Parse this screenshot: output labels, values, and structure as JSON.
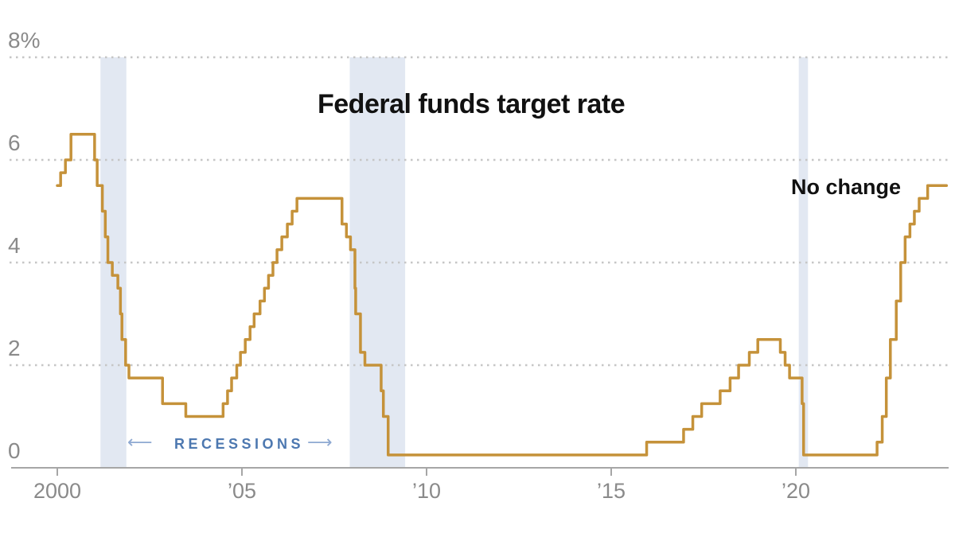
{
  "chart_data": {
    "type": "line",
    "title": "Federal funds target rate",
    "annotation": "No change",
    "recessions_caption": {
      "label": "RECESSIONS",
      "arrow_left": "⟵",
      "arrow_right": "⟶"
    },
    "xlabel": "",
    "ylabel": "",
    "ylim": [
      0,
      8
    ],
    "xlim": [
      1999.9,
      2024.3
    ],
    "grid": "horizontal-dotted",
    "legend": "none",
    "y_ticks": [
      {
        "value": 8,
        "label": "8%"
      },
      {
        "value": 6,
        "label": "6"
      },
      {
        "value": 4,
        "label": "4"
      },
      {
        "value": 2,
        "label": "2"
      },
      {
        "value": 0,
        "label": "0"
      }
    ],
    "x_ticks": [
      {
        "year": 2000,
        "label": "2000"
      },
      {
        "year": 2005,
        "label": "’05"
      },
      {
        "year": 2010,
        "label": "’10"
      },
      {
        "year": 2015,
        "label": "’15"
      },
      {
        "year": 2020,
        "label": "’20"
      }
    ],
    "recessions": [
      {
        "start": 2001.17,
        "end": 2001.87
      },
      {
        "start": 2007.92,
        "end": 2009.42
      },
      {
        "start": 2020.08,
        "end": 2020.33
      }
    ],
    "series": [
      {
        "name": "Federal funds target rate",
        "step": true,
        "end_year": 2024.08,
        "points": [
          [
            2000.0,
            5.5
          ],
          [
            2000.09,
            5.75
          ],
          [
            2000.22,
            6.0
          ],
          [
            2000.37,
            6.5
          ],
          [
            2001.01,
            6.0
          ],
          [
            2001.08,
            5.5
          ],
          [
            2001.22,
            5.0
          ],
          [
            2001.3,
            4.5
          ],
          [
            2001.37,
            4.0
          ],
          [
            2001.49,
            3.75
          ],
          [
            2001.64,
            3.5
          ],
          [
            2001.71,
            3.0
          ],
          [
            2001.75,
            2.5
          ],
          [
            2001.85,
            2.0
          ],
          [
            2001.94,
            1.75
          ],
          [
            2002.85,
            1.25
          ],
          [
            2003.48,
            1.0
          ],
          [
            2004.49,
            1.25
          ],
          [
            2004.61,
            1.5
          ],
          [
            2004.72,
            1.75
          ],
          [
            2004.86,
            2.0
          ],
          [
            2004.96,
            2.25
          ],
          [
            2005.09,
            2.5
          ],
          [
            2005.22,
            2.75
          ],
          [
            2005.33,
            3.0
          ],
          [
            2005.49,
            3.25
          ],
          [
            2005.61,
            3.5
          ],
          [
            2005.72,
            3.75
          ],
          [
            2005.84,
            4.0
          ],
          [
            2005.95,
            4.25
          ],
          [
            2006.08,
            4.5
          ],
          [
            2006.23,
            4.75
          ],
          [
            2006.36,
            5.0
          ],
          [
            2006.49,
            5.25
          ],
          [
            2007.71,
            4.75
          ],
          [
            2007.83,
            4.5
          ],
          [
            2007.94,
            4.25
          ],
          [
            2008.06,
            3.5
          ],
          [
            2008.08,
            3.0
          ],
          [
            2008.21,
            2.25
          ],
          [
            2008.33,
            2.0
          ],
          [
            2008.77,
            1.5
          ],
          [
            2008.83,
            1.0
          ],
          [
            2008.96,
            0.25
          ],
          [
            2015.96,
            0.5
          ],
          [
            2016.96,
            0.75
          ],
          [
            2017.21,
            1.0
          ],
          [
            2017.45,
            1.25
          ],
          [
            2017.95,
            1.5
          ],
          [
            2018.22,
            1.75
          ],
          [
            2018.45,
            2.0
          ],
          [
            2018.74,
            2.25
          ],
          [
            2018.97,
            2.5
          ],
          [
            2019.58,
            2.25
          ],
          [
            2019.71,
            2.0
          ],
          [
            2019.83,
            1.75
          ],
          [
            2020.17,
            1.25
          ],
          [
            2020.21,
            0.25
          ],
          [
            2022.2,
            0.5
          ],
          [
            2022.34,
            1.0
          ],
          [
            2022.45,
            1.75
          ],
          [
            2022.56,
            2.5
          ],
          [
            2022.72,
            3.25
          ],
          [
            2022.84,
            4.0
          ],
          [
            2022.96,
            4.5
          ],
          [
            2023.09,
            4.75
          ],
          [
            2023.21,
            5.0
          ],
          [
            2023.34,
            5.25
          ],
          [
            2023.57,
            5.5
          ]
        ]
      }
    ],
    "colors": {
      "line": "#c5923a",
      "recession_band": "#e2e8f2",
      "grid": "#c6c6c6",
      "axis": "#a6a6a6",
      "tick_label": "#8a8a8a",
      "title": "#111111",
      "annotation": "#111111",
      "recessions_text": "#4d78b0",
      "recessions_arrow": "#8ea9d2"
    }
  }
}
